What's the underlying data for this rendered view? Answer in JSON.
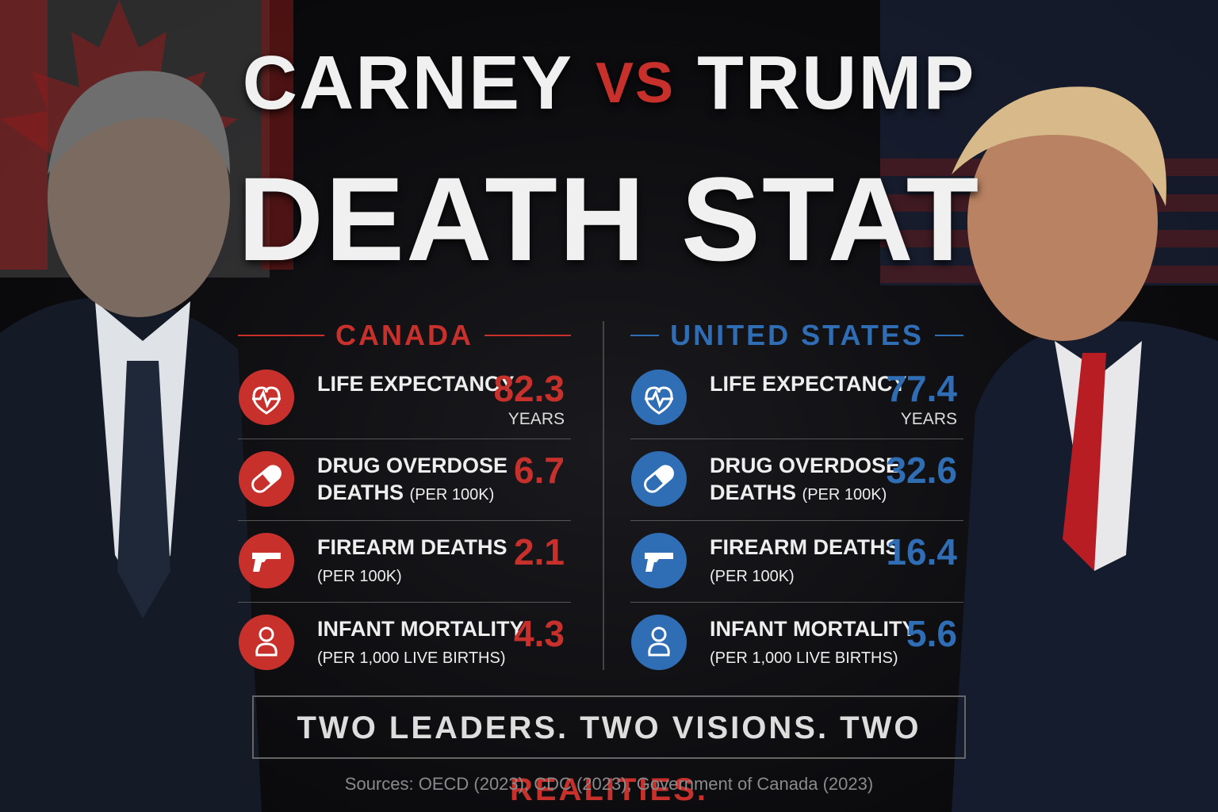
{
  "title": {
    "left": "CARNEY",
    "vs": "VS",
    "right": "TRUMP",
    "line2": "DEATH STAT"
  },
  "columns": [
    {
      "heading": "CANADA",
      "color": "#c8302c",
      "rows": [
        {
          "line1": "LIFE EXPECTANCY",
          "value": "82.3",
          "unit": "YEARS"
        },
        {
          "line1": "DRUG OVERDOSE",
          "line2": "DEATHS",
          "note": "(PER 100K)",
          "value": "6.7"
        },
        {
          "line1": "FIREARM DEATHS",
          "note": "(PER 100K)",
          "value": "2.1"
        },
        {
          "line1": "INFANT MORTALITY",
          "note": "(PER 1,000 LIVE BIRTHS)",
          "value": "4.3"
        }
      ]
    },
    {
      "heading": "UNITED STATES",
      "color": "#2f6db5",
      "rows": [
        {
          "line1": "LIFE EXPECTANCY",
          "value": "77.4",
          "unit": "YEARS"
        },
        {
          "line1": "DRUG OVERDOSE",
          "line2": "DEATHS",
          "note": "(PER 100K)",
          "value": "32.6"
        },
        {
          "line1": "FIREARM DEATHS",
          "note": "(PER 100K)",
          "value": "16.4"
        },
        {
          "line1": "INFANT MORTALITY",
          "note": "(PER 1,000 LIVE BIRTHS)",
          "value": "5.6"
        }
      ]
    }
  ],
  "tagline": {
    "main": "TWO LEADERS. TWO VISIONS. TWO",
    "accent": "REALITIES."
  },
  "sources": "Sources: OECD (2023), CDC (2023), Government of Canada (2023)"
}
